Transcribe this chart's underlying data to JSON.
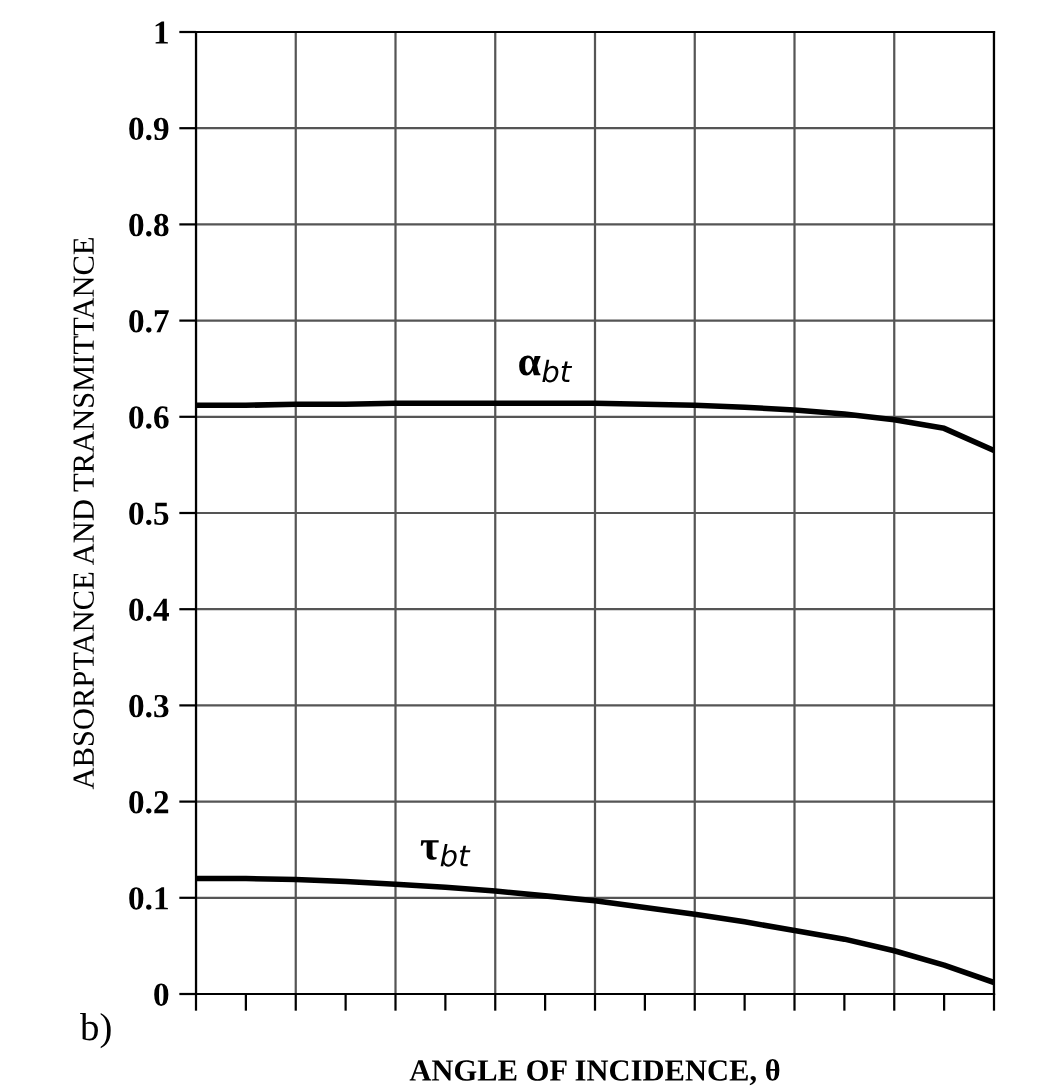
{
  "chart_data": {
    "type": "line",
    "xlabel": "ANGLE OF INCIDENCE, θ",
    "ylabel": "ABSORPTANCE AND TRANSMITTANCE",
    "categories": [
      null,
      null,
      null,
      null,
      null,
      null,
      null,
      null,
      null,
      null,
      null,
      null,
      null,
      null,
      null,
      null,
      null
    ],
    "series": [
      {
        "color": "#000000",
        "values": [
          0.612,
          0.612,
          0.613,
          0.613,
          0.614,
          0.614,
          0.614,
          0.614,
          0.614,
          0.613,
          0.612,
          0.61,
          0.607,
          0.603,
          0.597,
          0.588,
          0.565
        ]
      },
      {
        "color": "#000000",
        "values": [
          0.12,
          0.12,
          0.119,
          0.117,
          0.114,
          0.111,
          0.107,
          0.102,
          0.097,
          0.09,
          0.083,
          0.075,
          0.066,
          0.057,
          0.045,
          0.03,
          0.012
        ]
      }
    ],
    "annotations": [
      "α$_{bt}$",
      "τ$_{bt}$",
      "b)"
    ],
    "ylim": [
      0,
      1
    ],
    "yticks": [
      0,
      {
        "value": 0.1,
        "label": "0.1"
      },
      {
        "value": 0.2,
        "label": "0.2"
      },
      {
        "value": 0.3,
        "label": "0.3"
      },
      {
        "value": 0.4,
        "label": "0.4"
      },
      {
        "value": 0.5,
        "label": "0.5"
      },
      {
        "value": 0.6,
        "label": "0.6"
      },
      {
        "value": 0.7,
        "label": "0.7"
      },
      {
        "value": 0.8,
        "label": "0.8"
      },
      {
        "value": 0.9,
        "label": "0.9"
      },
      1
    ],
    "grid": true,
    "line_style": "solid",
    "marker": "none"
  }
}
